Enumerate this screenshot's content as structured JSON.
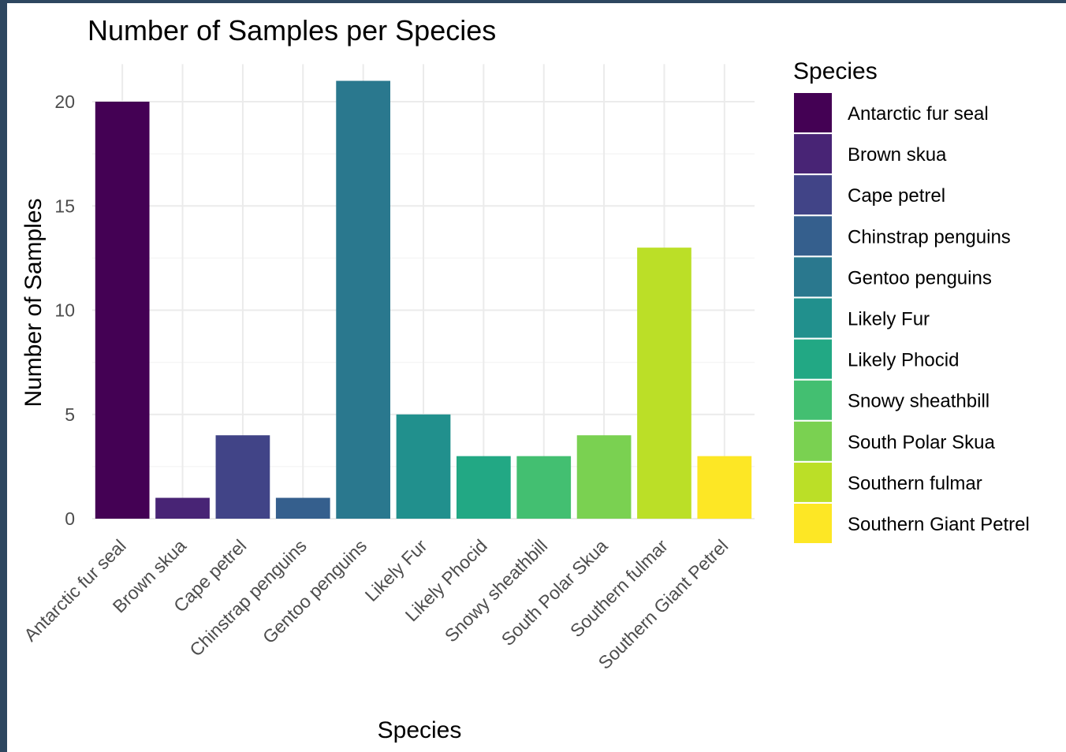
{
  "chart_data": {
    "type": "bar",
    "title": "Number of Samples per Species",
    "xlabel": "Species",
    "ylabel": "Number of Samples",
    "ylim": [
      0,
      21
    ],
    "yticks": [
      "0",
      "5",
      "10",
      "15",
      "20"
    ],
    "grid": true,
    "legend": {
      "title": "Species",
      "position": "right"
    },
    "categories": [
      "Antarctic fur seal",
      "Brown skua",
      "Cape petrel",
      "Chinstrap penguins",
      "Gentoo penguins",
      "Likely Fur",
      "Likely Phocid",
      "Snowy sheathbill",
      "South Polar Skua",
      "Southern fulmar",
      "Southern Giant Petrel"
    ],
    "values": [
      20,
      1,
      4,
      1,
      21,
      5,
      3,
      3,
      4,
      13,
      3
    ],
    "colors": [
      "#440154",
      "#482475",
      "#414487",
      "#355f8d",
      "#2a788e",
      "#21908d",
      "#22a884",
      "#43bf71",
      "#7ad151",
      "#bbdf27",
      "#fde725"
    ]
  }
}
